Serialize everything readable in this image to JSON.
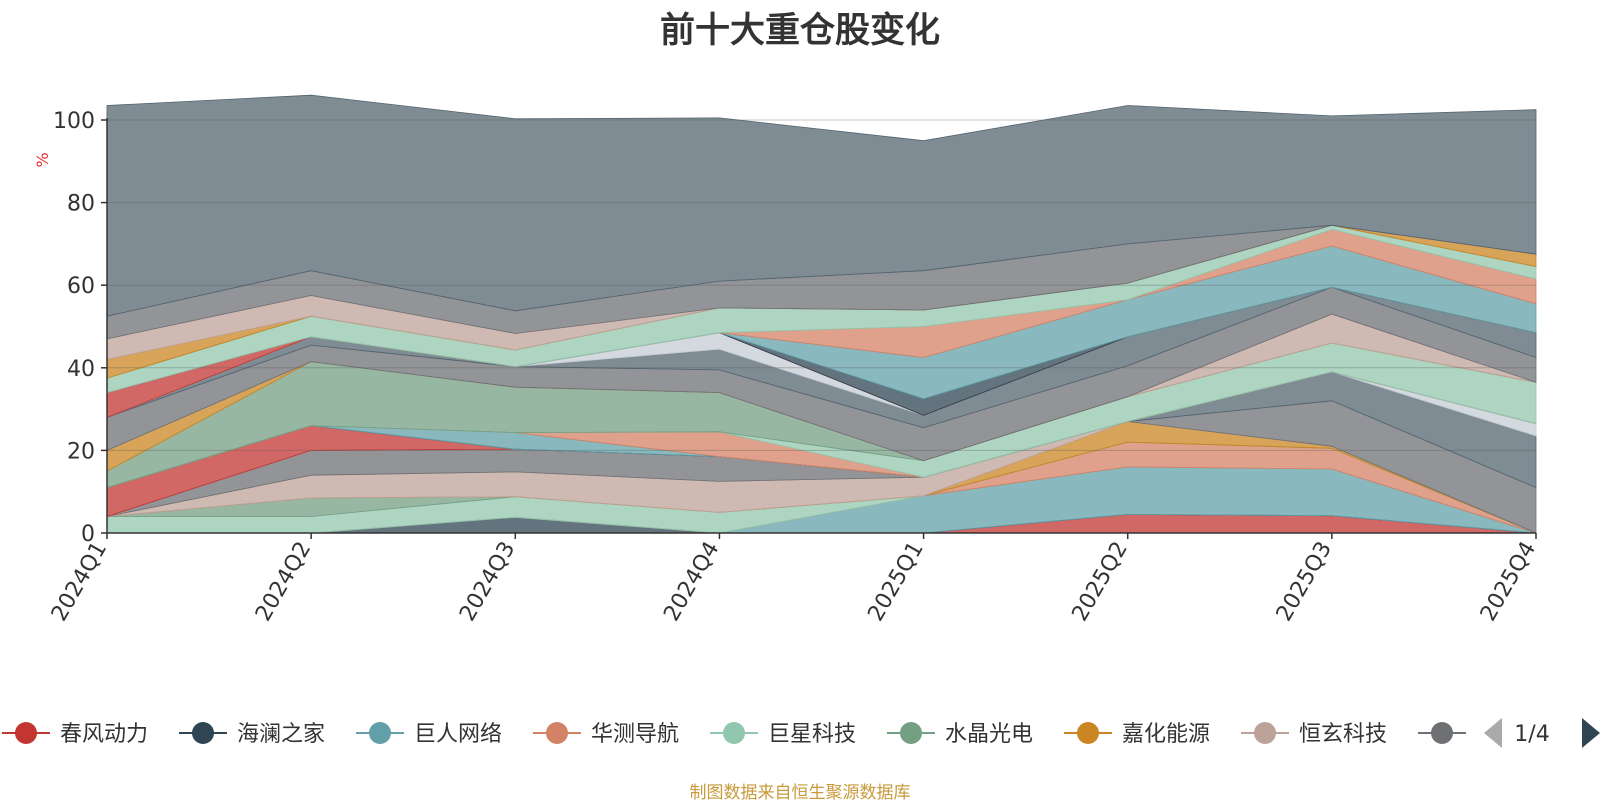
{
  "chart_data": {
    "type": "area",
    "title": "前十大重仓股变化",
    "ylabel": "%",
    "categories": [
      "2024Q1",
      "2024Q2",
      "2024Q3",
      "2024Q4",
      "2025Q1",
      "2025Q2",
      "2025Q3",
      "2025Q4"
    ],
    "ylim": [
      0,
      100
    ],
    "yticks": [
      0,
      20,
      40,
      60,
      80,
      100
    ],
    "grid": true,
    "legend_position": "bottom",
    "legend_page": "1/4",
    "series": [
      {
        "name": "春风动力",
        "color": "#c23531",
        "values": [
          0,
          0,
          0,
          0,
          0,
          4.5,
          4.2,
          0
        ]
      },
      {
        "name": "海澜之家",
        "color": "#2f4554",
        "values": [
          0,
          0,
          3.8,
          0,
          0,
          0,
          0,
          0
        ]
      },
      {
        "name": "巨人网络",
        "color": "#61a0a8",
        "values": [
          0,
          0,
          0,
          0,
          9,
          11.5,
          11.3,
          0
        ]
      },
      {
        "name": "华测导航",
        "color": "#d48265",
        "values": [
          0,
          0,
          0,
          0,
          0,
          6,
          5,
          0
        ]
      },
      {
        "name": "巨星科技",
        "color": "#91c7ae",
        "values": [
          4,
          4,
          5,
          5,
          0,
          0,
          0,
          0
        ]
      },
      {
        "name": "水晶光电",
        "color": "#749f83",
        "values": [
          0,
          4.5,
          0,
          0,
          0,
          0,
          0,
          0
        ]
      },
      {
        "name": "嘉化能源",
        "color": "#ca8622",
        "values": [
          0,
          0,
          0,
          0,
          0,
          5,
          0.5,
          0
        ]
      },
      {
        "name": "恒玄科技",
        "color": "#bda29a",
        "values": [
          0,
          5.5,
          6,
          7.5,
          4.5,
          0,
          0,
          0
        ]
      },
      {
        "name": "",
        "color": "#6e7074",
        "values": [
          0,
          6,
          5.5,
          6,
          0,
          0,
          11,
          11
        ]
      }
    ],
    "other_layers": [
      {
        "color": "#546570",
        "values": [
          0,
          0,
          0,
          0,
          0,
          0,
          7,
          12.5
        ]
      },
      {
        "color": "#c4ccd3",
        "values": [
          0,
          0,
          0,
          0,
          0,
          0,
          0,
          3
        ]
      },
      {
        "color": "#c23531",
        "values": [
          7,
          6,
          0,
          0,
          0,
          0,
          0,
          0
        ]
      },
      {
        "color": "#2f4554",
        "values": [
          0,
          0,
          0,
          0,
          0,
          0,
          0,
          0
        ]
      },
      {
        "color": "#61a0a8",
        "values": [
          0,
          0,
          4,
          0,
          0,
          0,
          0,
          0
        ]
      },
      {
        "color": "#d48265",
        "values": [
          0,
          0,
          0,
          6,
          0,
          0,
          0,
          0
        ]
      },
      {
        "color": "#91c7ae",
        "values": [
          0,
          0,
          0,
          0,
          4,
          6,
          7,
          10
        ]
      },
      {
        "color": "#749f83",
        "values": [
          4,
          15.5,
          11,
          9.5,
          0,
          0,
          0,
          0
        ]
      },
      {
        "color": "#ca8622",
        "values": [
          5,
          0,
          0,
          0,
          0,
          0,
          0,
          0
        ]
      },
      {
        "color": "#bda29a",
        "values": [
          0,
          0,
          0,
          0,
          0,
          0,
          7,
          0
        ]
      },
      {
        "color": "#6e7074",
        "values": [
          8,
          4,
          5,
          5.5,
          8,
          7.5,
          6.5,
          6
        ]
      },
      {
        "color": "#546570",
        "values": [
          0,
          2,
          0,
          5,
          3,
          7,
          0,
          6
        ]
      },
      {
        "color": "#c4ccd3",
        "values": [
          0,
          0,
          0,
          4,
          0,
          0,
          0,
          0
        ]
      },
      {
        "color": "#c23531",
        "values": [
          6,
          0,
          0,
          0,
          0,
          0,
          0,
          0
        ]
      },
      {
        "color": "#2f4554",
        "values": [
          0,
          0,
          0,
          0,
          4,
          0,
          0,
          0
        ]
      },
      {
        "color": "#61a0a8",
        "values": [
          0,
          0,
          0,
          0,
          10,
          9,
          10,
          7
        ]
      },
      {
        "color": "#d48265",
        "values": [
          0,
          0,
          0,
          0,
          7.5,
          0,
          4,
          6
        ]
      },
      {
        "color": "#91c7ae",
        "values": [
          3.5,
          5,
          4,
          6,
          4,
          4,
          1,
          3
        ]
      },
      {
        "color": "#749f83",
        "values": [
          0,
          0,
          0,
          0,
          0,
          0,
          0,
          0
        ]
      },
      {
        "color": "#ca8622",
        "values": [
          4.5,
          0,
          0,
          0,
          0,
          0,
          0,
          3
        ]
      },
      {
        "color": "#bda29a",
        "values": [
          5,
          5,
          4,
          0,
          0,
          0,
          0,
          0
        ]
      },
      {
        "color": "#6e7074",
        "values": [
          5.5,
          6,
          5.5,
          6.5,
          9.5,
          9.5,
          0,
          0
        ]
      },
      {
        "color": "#546570",
        "values": [
          51,
          42.5,
          46.5,
          39.5,
          31.5,
          33.5,
          26.5,
          35
        ]
      }
    ]
  },
  "legend": {
    "items": [
      {
        "name": "春风动力",
        "color": "#c23531"
      },
      {
        "name": "海澜之家",
        "color": "#2f4554"
      },
      {
        "name": "巨人网络",
        "color": "#61a0a8"
      },
      {
        "name": "华测导航",
        "color": "#d48265"
      },
      {
        "name": "巨星科技",
        "color": "#91c7ae"
      },
      {
        "name": "水晶光电",
        "color": "#749f83"
      },
      {
        "name": "嘉化能源",
        "color": "#ca8622"
      },
      {
        "name": "恒玄科技",
        "color": "#bda29a"
      },
      {
        "name": "",
        "color": "#6e7074"
      }
    ],
    "page_label": "1/4",
    "prev_icon": "triangle-left-icon",
    "next_icon": "triangle-right-icon"
  },
  "footer": {
    "source": "制图数据来自恒生聚源数据库"
  }
}
